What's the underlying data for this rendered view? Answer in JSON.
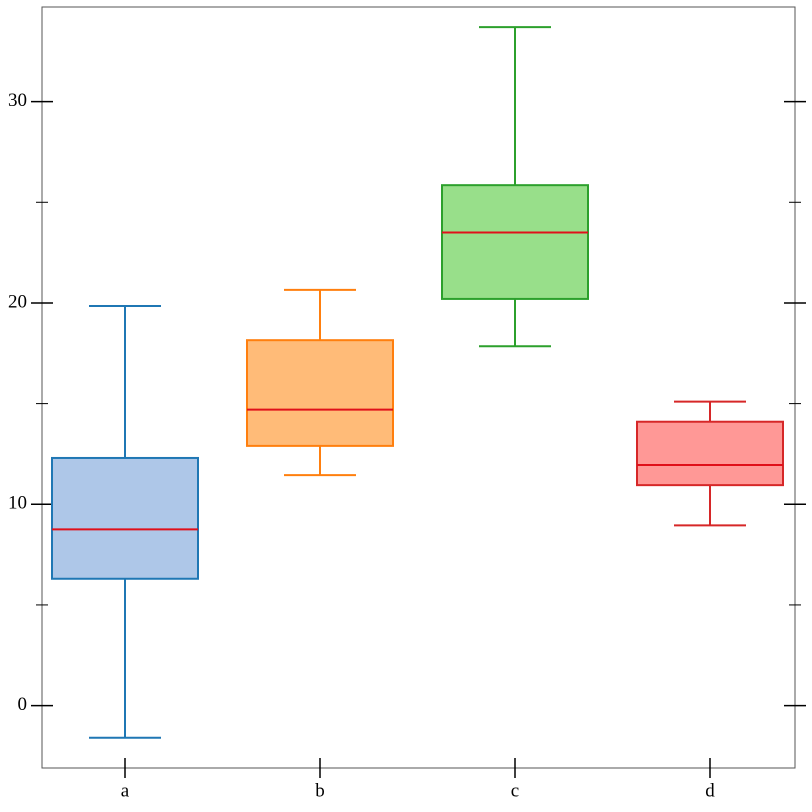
{
  "chart_data": {
    "type": "box",
    "categories": [
      "a",
      "b",
      "c",
      "d"
    ],
    "whisker_low": [
      -1.6,
      11.45,
      17.85,
      8.95
    ],
    "q1": [
      6.3,
      12.9,
      20.2,
      10.95
    ],
    "median": [
      8.75,
      14.7,
      23.5,
      11.95
    ],
    "q3": [
      12.3,
      18.15,
      25.85,
      14.1
    ],
    "whisker_high": [
      19.85,
      20.65,
      33.7,
      15.1
    ],
    "fill_colors": [
      "#aec7e8",
      "#ffbb78",
      "#98df8a",
      "#ff9896"
    ],
    "edge_colors": [
      "#1f77b4",
      "#ff7f0e",
      "#2ca02c",
      "#d62728"
    ],
    "median_color": "#e0101a",
    "ylim": [
      -3.1,
      34.7
    ],
    "yticks": [
      0,
      10,
      20,
      30
    ],
    "yminor_ticks": [
      5,
      15,
      25
    ]
  }
}
